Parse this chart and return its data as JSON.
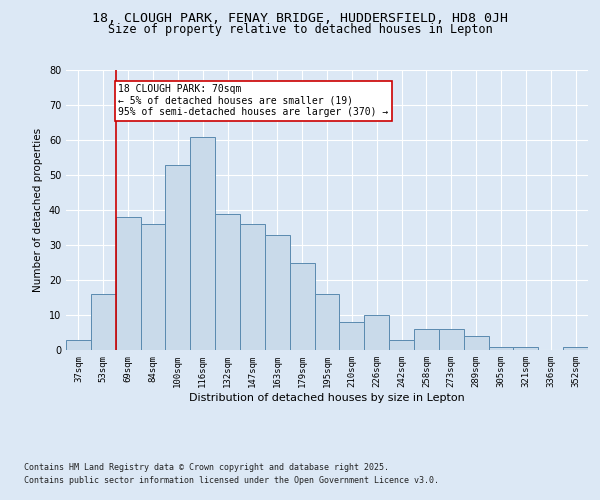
{
  "title_line1": "18, CLOUGH PARK, FENAY BRIDGE, HUDDERSFIELD, HD8 0JH",
  "title_line2": "Size of property relative to detached houses in Lepton",
  "xlabel": "Distribution of detached houses by size in Lepton",
  "ylabel": "Number of detached properties",
  "categories": [
    "37sqm",
    "53sqm",
    "69sqm",
    "84sqm",
    "100sqm",
    "116sqm",
    "132sqm",
    "147sqm",
    "163sqm",
    "179sqm",
    "195sqm",
    "210sqm",
    "226sqm",
    "242sqm",
    "258sqm",
    "273sqm",
    "289sqm",
    "305sqm",
    "321sqm",
    "336sqm",
    "352sqm"
  ],
  "values": [
    3,
    16,
    38,
    36,
    53,
    61,
    39,
    36,
    33,
    25,
    16,
    8,
    10,
    3,
    6,
    6,
    4,
    1,
    1,
    0,
    1
  ],
  "bar_color": "#c9daea",
  "bar_edge_color": "#5a8ab0",
  "vline_color": "#cc0000",
  "vline_index": 2,
  "annotation_text": "18 CLOUGH PARK: 70sqm\n← 5% of detached houses are smaller (19)\n95% of semi-detached houses are larger (370) →",
  "annotation_box_color": "#ffffff",
  "annotation_box_edge": "#cc0000",
  "background_color": "#dce8f5",
  "plot_bg_color": "#dce8f5",
  "grid_color": "#ffffff",
  "ylim": [
    0,
    80
  ],
  "yticks": [
    0,
    10,
    20,
    30,
    40,
    50,
    60,
    70,
    80
  ],
  "footer_line1": "Contains HM Land Registry data © Crown copyright and database right 2025.",
  "footer_line2": "Contains public sector information licensed under the Open Government Licence v3.0.",
  "title_fontsize": 9.5,
  "subtitle_fontsize": 8.5,
  "tick_fontsize": 6.5,
  "ylabel_fontsize": 7.5,
  "xlabel_fontsize": 8,
  "footer_fontsize": 6,
  "annotation_fontsize": 7
}
